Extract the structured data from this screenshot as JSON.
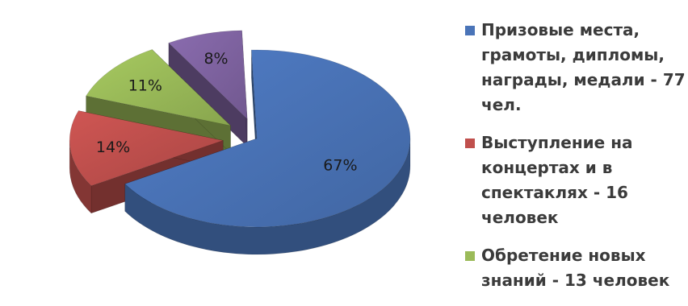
{
  "chart_data": {
    "type": "pie",
    "title": "",
    "slices": [
      {
        "label": "Призовые места, грамоты, дипломы, награды, медали - 77 чел.",
        "value": 67,
        "value_label": "67%",
        "color": "#4a74b8"
      },
      {
        "label": "Выступление на концертах и в спектаклях - 16 человек",
        "value": 14,
        "value_label": "14%",
        "color": "#c0504d"
      },
      {
        "label": "Обретение новых знаний - 13 человек",
        "value": 11,
        "value_label": "11%",
        "color": "#9bbb59"
      },
      {
        "label": "",
        "value": 8,
        "value_label": "8%",
        "color": "#8064a2"
      }
    ],
    "legend_position": "right",
    "style": "3d-exploded"
  }
}
